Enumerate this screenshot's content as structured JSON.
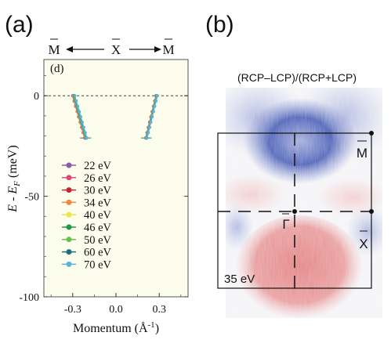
{
  "panel_labels": {
    "a": "(a)",
    "b": "(b)"
  },
  "chart_data": [
    {
      "type": "line",
      "panel_tag": "(d)",
      "top_axis": {
        "left": "M",
        "center": "X",
        "right": "M"
      },
      "xlabel": "Momentum (Å",
      "xlabel_sup": "-1",
      "xlabel_close": ")",
      "ylabel": "E - E",
      "ylabel_sub": "F",
      "ylabel_unit": "(meV)",
      "xlim": [
        -0.5,
        0.5
      ],
      "ylim": [
        -100,
        18
      ],
      "xticks": [
        -0.3,
        0.0,
        0.3
      ],
      "xtick_labels": [
        "-0.3",
        "0.0",
        "0.3"
      ],
      "yticks": [
        0,
        -50,
        -100
      ],
      "ytick_labels": [
        "0",
        "-50",
        "-100"
      ],
      "fermi_level": 0,
      "legend_placement": "bottom-left",
      "background_color": "#fdfdee",
      "series": [
        {
          "name": "22 eV",
          "color": "#8c5aa8",
          "left": {
            "x": [
              -0.3,
              -0.217
            ],
            "y": [
              0,
              -21
            ]
          },
          "right": {
            "x": [
              0.278,
              0.207
            ],
            "y": [
              0,
              -21
            ]
          }
        },
        {
          "name": "26 eV",
          "color": "#d94a7a",
          "left": {
            "x": [
              -0.299,
              -0.216
            ],
            "y": [
              0,
              -21
            ]
          },
          "right": {
            "x": [
              0.279,
              0.208
            ],
            "y": [
              0,
              -21
            ]
          }
        },
        {
          "name": "30 eV",
          "color": "#c6262c",
          "left": {
            "x": [
              -0.297,
              -0.214
            ],
            "y": [
              0,
              -21
            ]
          },
          "right": {
            "x": [
              0.28,
              0.209
            ],
            "y": [
              0,
              -21
            ]
          }
        },
        {
          "name": "34 eV",
          "color": "#f08a3c",
          "left": {
            "x": [
              -0.296,
              -0.213
            ],
            "y": [
              0,
              -21
            ]
          },
          "right": {
            "x": [
              0.281,
              0.21
            ],
            "y": [
              0,
              -21
            ]
          }
        },
        {
          "name": "40 eV",
          "color": "#e8e84a",
          "left": {
            "x": [
              -0.294,
              -0.211
            ],
            "y": [
              0,
              -21
            ]
          },
          "right": {
            "x": [
              0.282,
              0.211
            ],
            "y": [
              0,
              -21
            ]
          }
        },
        {
          "name": "46 eV",
          "color": "#1f9a45",
          "left": {
            "x": [
              -0.292,
              -0.209
            ],
            "y": [
              0,
              -21
            ]
          },
          "right": {
            "x": [
              0.283,
              0.212
            ],
            "y": [
              0,
              -21
            ]
          }
        },
        {
          "name": "50 eV",
          "color": "#66c04a",
          "left": {
            "x": [
              -0.29,
              -0.207
            ],
            "y": [
              0,
              -21
            ]
          },
          "right": {
            "x": [
              0.284,
              0.213
            ],
            "y": [
              0,
              -21
            ]
          }
        },
        {
          "name": "60 eV",
          "color": "#1f6f7a",
          "left": {
            "x": [
              -0.288,
              -0.205
            ],
            "y": [
              0,
              -21
            ]
          },
          "right": {
            "x": [
              0.285,
              0.214
            ],
            "y": [
              0,
              -21
            ]
          }
        },
        {
          "name": "70 eV",
          "color": "#5ab4d8",
          "left": {
            "x": [
              -0.286,
              -0.203
            ],
            "y": [
              0,
              -21
            ]
          },
          "right": {
            "x": [
              0.286,
              0.215
            ],
            "y": [
              0,
              -21
            ]
          }
        }
      ]
    },
    {
      "type": "heatmap",
      "title": "(RCP–LCP)/(RCP+LCP)",
      "energy_label": "35 eV",
      "points": {
        "gamma": {
          "label": "Γ"
        },
        "x": {
          "label": "X"
        },
        "m": {
          "label": "M"
        }
      },
      "colors": {
        "positive": "#d45050",
        "negative": "#3e55b0",
        "zero": "#f4f4f7"
      }
    }
  ]
}
